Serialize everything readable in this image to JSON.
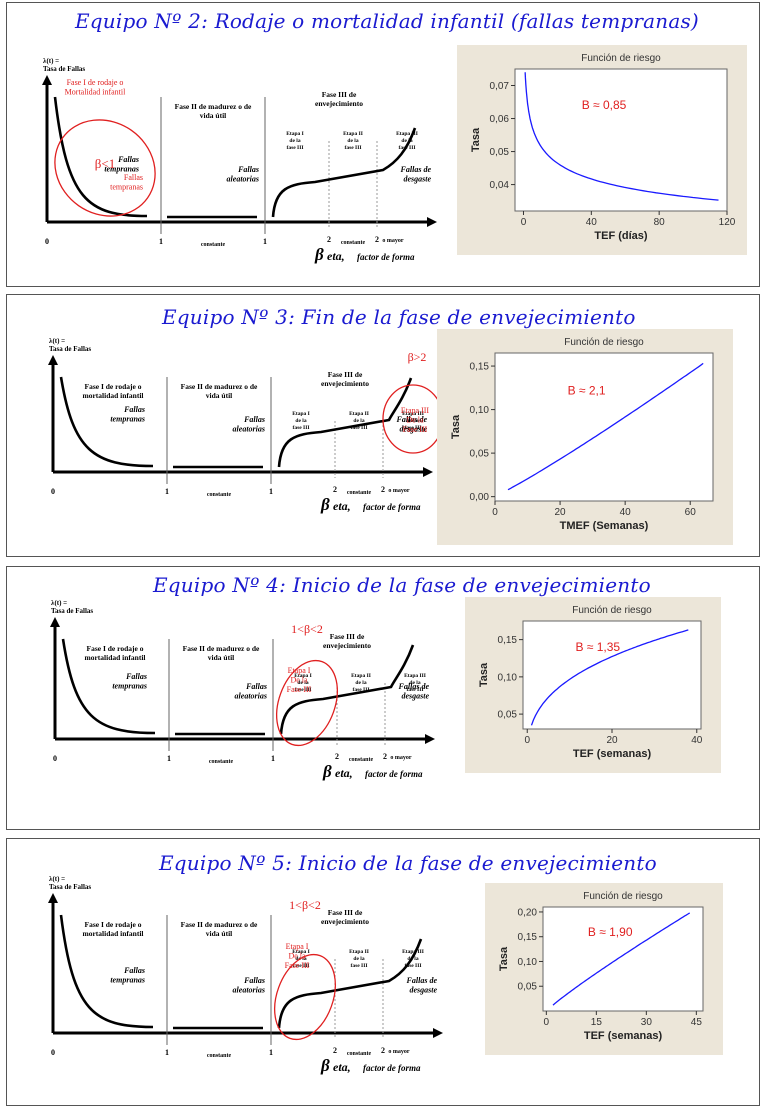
{
  "panels": [
    {
      "title": "Equipo Nº 2: Rodaje o mortalidad infantil (fallas tempranas)",
      "beta_note": "β<1",
      "highlight_label": "Fase I de rodaje o Mortalidad infantil",
      "highlight_label2": "Fallas tempranas",
      "chart_title": "Función de riesgo",
      "b_label": "B ≈ 0,85",
      "xlabel": "TEF (días)",
      "ylabel": "Tasa"
    },
    {
      "title": "Equipo Nº 3: Fin de la fase de envejecimiento",
      "beta_note": "β>2",
      "highlight_label": "Etapa III De la Fase III",
      "chart_title": "Función de riesgo",
      "b_label": "B ≈ 2,1",
      "xlabel": "TMEF (Semanas)",
      "ylabel": "Tasa"
    },
    {
      "title": "Equipo Nº 4: Inicio de la fase de envejecimiento",
      "beta_note": "1<β<2",
      "highlight_label": "Etapa I De la Fase III",
      "chart_title": "Función de riesgo",
      "b_label": "B ≈ 1,35",
      "xlabel": "TEF (semanas)",
      "ylabel": "Tasa"
    },
    {
      "title": "Equipo Nº 5: Inicio de la fase de envejecimiento",
      "beta_note": "1<β<2",
      "highlight_label": "Etapa I De la Fase III",
      "chart_title": "Función de riesgo",
      "b_label": "B ≈ 1,90",
      "xlabel": "TEF (semanas)",
      "ylabel": "Tasa"
    }
  ],
  "bathtub": {
    "y_symbol": "λ(t) =",
    "y_label": "Tasa de Fallas",
    "phase1": "Fase I de rodaje o mortalidad infantil",
    "phase2": "Fase II de madurez o de vida útil",
    "phase3": "Fase III de envejecimiento",
    "etapa1": "Etapa I de la fase III",
    "etapa2": "Etapa II de la fase III",
    "etapa3": "Etapa III de la fase III",
    "fallas_tempranas": "Fallas tempranas",
    "fallas_aleatorias": "Fallas aleatorias",
    "fallas_desgaste": "Fallas de desgaste",
    "tick0": "0",
    "tick1a": "1",
    "constante": "constante",
    "tick1b": "1",
    "tick2a": "2",
    "tick2b": "2",
    "o_mayor": "o mayor",
    "axis_label_big": "β",
    "axis_label_rest": "eta,",
    "axis_label_tail": "factor de forma"
  },
  "colors": {
    "title_blue": "#1a1ad0",
    "red": "#e02020",
    "curve_blue": "#1a1aff",
    "chart_bg": "#ece6d9"
  },
  "chart_data": [
    {
      "type": "line",
      "title": "Función de riesgo",
      "xlabel": "TEF (días)",
      "ylabel": "Tasa",
      "xlim": [
        -5,
        120
      ],
      "ylim": [
        0.032,
        0.075
      ],
      "xticks": [
        0,
        40,
        80,
        120
      ],
      "xtick_labels": [
        "0",
        "40",
        "80",
        "120"
      ],
      "yticks": [
        0.04,
        0.05,
        0.06,
        0.07
      ],
      "ytick_labels": [
        "0,04",
        "0,05",
        "0,06",
        "0,07"
      ],
      "shape": 0.85,
      "x_start": 1,
      "x_end": 115,
      "y_start": 0.074,
      "y_end": 0.0353
    },
    {
      "type": "line",
      "title": "Función de riesgo",
      "xlabel": "TMEF (Semanas)",
      "ylabel": "Tasa",
      "xlim": [
        0,
        67
      ],
      "ylim": [
        -0.005,
        0.165
      ],
      "xticks": [
        0,
        20,
        40,
        60
      ],
      "xtick_labels": [
        "0",
        "20",
        "40",
        "60"
      ],
      "yticks": [
        0.0,
        0.05,
        0.1,
        0.15
      ],
      "ytick_labels": [
        "0,00",
        "0,05",
        "0,10",
        "0,15"
      ],
      "shape": 2.1,
      "x_start": 4,
      "x_end": 64,
      "y_start": 0.008,
      "y_end": 0.153
    },
    {
      "type": "line",
      "title": "Función de riesgo",
      "xlabel": "TEF (semanas)",
      "ylabel": "Tasa",
      "xlim": [
        -1,
        41
      ],
      "ylim": [
        0.03,
        0.175
      ],
      "xticks": [
        0,
        20,
        40
      ],
      "xtick_labels": [
        "0",
        "20",
        "40"
      ],
      "yticks": [
        0.05,
        0.1,
        0.15
      ],
      "ytick_labels": [
        "0,05",
        "0,10",
        "0,15"
      ],
      "shape": 1.35,
      "x_start": 1,
      "x_end": 38,
      "y_start": 0.035,
      "y_end": 0.163
    },
    {
      "type": "line",
      "title": "Función de riesgo",
      "xlabel": "TEF (semanas)",
      "ylabel": "Tasa",
      "xlim": [
        -1,
        47
      ],
      "ylim": [
        0.0,
        0.21
      ],
      "xticks": [
        0,
        15,
        30,
        45
      ],
      "xtick_labels": [
        "0",
        "15",
        "30",
        "45"
      ],
      "yticks": [
        0.05,
        0.1,
        0.15,
        0.2
      ],
      "ytick_labels": [
        "0,05",
        "0,10",
        "0,15",
        "0,20"
      ],
      "shape": 1.9,
      "x_start": 2,
      "x_end": 43,
      "y_start": 0.012,
      "y_end": 0.198
    }
  ]
}
